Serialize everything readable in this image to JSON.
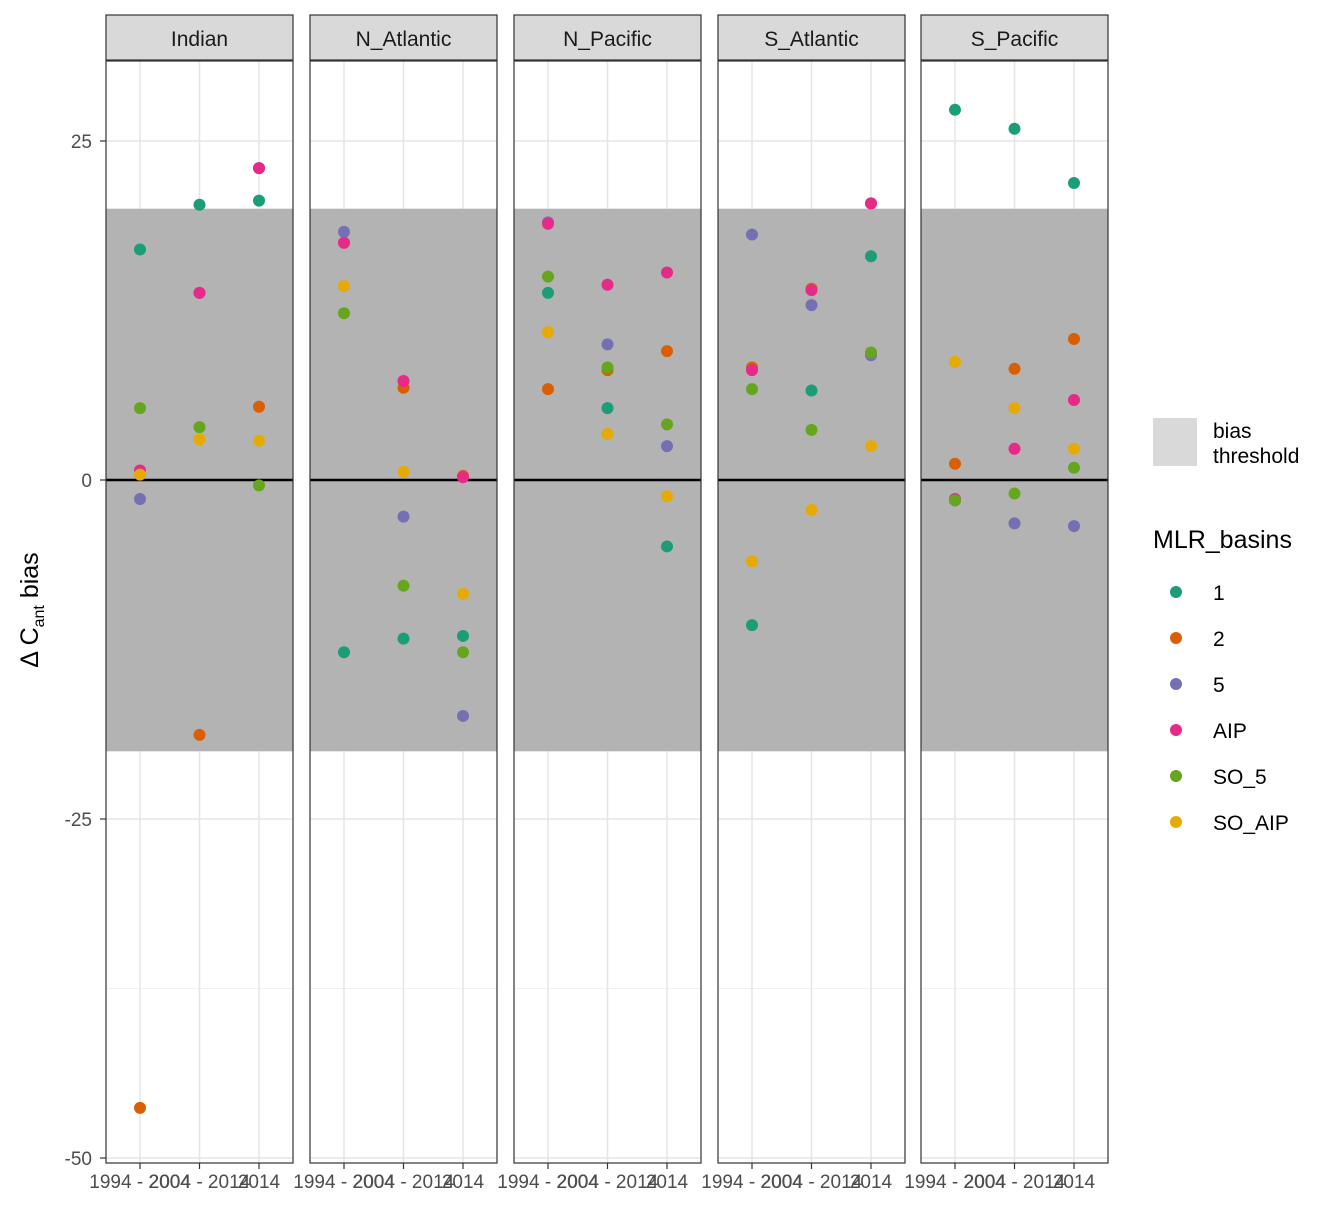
{
  "chart_data": {
    "type": "scatter",
    "facets": [
      "Indian",
      "N_Atlantic",
      "N_Pacific",
      "S_Atlantic",
      "S_Pacific"
    ],
    "x_ticks": [
      1994,
      2004,
      2014
    ],
    "x_tick_labels": [
      "1994",
      "2004",
      "2014"
    ],
    "x_period_labels": [
      "1994 - 2004",
      "2004 - 2014"
    ],
    "xlim": [
      1994,
      2014
    ],
    "ylim": [
      -50,
      30
    ],
    "y_ticks": [
      -50,
      -25,
      0,
      25
    ],
    "y_tick_labels": [
      "-50",
      "-25",
      "0",
      "25"
    ],
    "ylabel": "Δ C",
    "ylabel_sub": "ant",
    "ylabel_suffix": " bias",
    "xlabel": "",
    "bias_threshold": [
      -20,
      20
    ],
    "legend_fill_label": [
      "bias",
      "threshold"
    ],
    "legend_title": "MLR_basins",
    "series": [
      {
        "name": "1",
        "color": "#1B9E77",
        "points": {
          "Indian": [
            [
              1999,
              17
            ],
            [
              2009,
              20.3
            ],
            [
              2019,
              20.6
            ]
          ],
          "N_Atlantic": [
            [
              1999,
              -12.7
            ],
            [
              2009,
              -11.7
            ],
            [
              2019,
              -11.5
            ]
          ],
          "N_Pacific": [
            [
              1999,
              13.8
            ],
            [
              2009,
              5.3
            ],
            [
              2019,
              -4.9
            ]
          ],
          "S_Atlantic": [
            [
              1999,
              -10.7
            ],
            [
              2009,
              6.6
            ],
            [
              2019,
              16.5
            ]
          ],
          "S_Pacific": [
            [
              1999,
              27.3
            ],
            [
              2009,
              25.9
            ],
            [
              2019,
              21.9
            ]
          ]
        }
      },
      {
        "name": "2",
        "color": "#D95F02",
        "points": {
          "Indian": [
            [
              1999,
              -46.3
            ],
            [
              2009,
              -18.8
            ],
            [
              2019,
              5.4
            ]
          ],
          "N_Atlantic": [
            [
              1999,
              17.5
            ],
            [
              2009,
              6.8
            ],
            [
              2019,
              0.3
            ]
          ],
          "N_Pacific": [
            [
              1999,
              6.7
            ],
            [
              2009,
              8.1
            ],
            [
              2019,
              9.5
            ]
          ],
          "S_Atlantic": [
            [
              1999,
              8.3
            ],
            [
              2009,
              14.1
            ],
            [
              2019,
              20.4
            ]
          ],
          "S_Pacific": [
            [
              1999,
              1.2
            ],
            [
              2009,
              8.2
            ],
            [
              2019,
              10.4
            ]
          ]
        }
      },
      {
        "name": "5",
        "color": "#7570B3",
        "points": {
          "Indian": [
            [
              1999,
              -1.4
            ],
            [
              2009,
              13.8
            ],
            [
              2019,
              23
            ]
          ],
          "N_Atlantic": [
            [
              1999,
              18.3
            ],
            [
              2009,
              -2.7
            ],
            [
              2019,
              -17.4
            ]
          ],
          "N_Pacific": [
            [
              1999,
              19
            ],
            [
              2009,
              10
            ],
            [
              2019,
              2.5
            ]
          ],
          "S_Atlantic": [
            [
              1999,
              18.1
            ],
            [
              2009,
              12.9
            ],
            [
              2019,
              9.2
            ]
          ],
          "S_Pacific": [
            [
              1999,
              -1.5
            ],
            [
              2009,
              -3.2
            ],
            [
              2019,
              -3.4
            ]
          ]
        }
      },
      {
        "name": "AIP",
        "color": "#E7298A",
        "points": {
          "Indian": [
            [
              1999,
              0.7
            ],
            [
              2009,
              13.8
            ],
            [
              2019,
              23
            ]
          ],
          "N_Atlantic": [
            [
              1999,
              17.5
            ],
            [
              2009,
              7.3
            ],
            [
              2019,
              0.2
            ]
          ],
          "N_Pacific": [
            [
              1999,
              18.9
            ],
            [
              2009,
              14.4
            ],
            [
              2019,
              15.3
            ]
          ],
          "S_Atlantic": [
            [
              1999,
              8.1
            ],
            [
              2009,
              14
            ],
            [
              2019,
              20.4
            ]
          ],
          "S_Pacific": [
            [
              1999,
              -1.4
            ],
            [
              2009,
              2.3
            ],
            [
              2019,
              5.9
            ]
          ]
        }
      },
      {
        "name": "SO_5",
        "color": "#66A61E",
        "points": {
          "Indian": [
            [
              1999,
              5.3
            ],
            [
              2009,
              3.9
            ],
            [
              2019,
              -0.4
            ]
          ],
          "N_Atlantic": [
            [
              1999,
              12.3
            ],
            [
              2009,
              -7.8
            ],
            [
              2019,
              -12.7
            ]
          ],
          "N_Pacific": [
            [
              1999,
              15
            ],
            [
              2009,
              8.3
            ],
            [
              2019,
              4.1
            ]
          ],
          "S_Atlantic": [
            [
              1999,
              6.7
            ],
            [
              2009,
              3.7
            ],
            [
              2019,
              9.4
            ]
          ],
          "S_Pacific": [
            [
              1999,
              -1.5
            ],
            [
              2009,
              -1
            ],
            [
              2019,
              0.9
            ]
          ]
        }
      },
      {
        "name": "SO_AIP",
        "color": "#E6AB02",
        "points": {
          "Indian": [
            [
              1999,
              0.4
            ],
            [
              2009,
              3
            ],
            [
              2019,
              2.9
            ]
          ],
          "N_Atlantic": [
            [
              1999,
              14.3
            ],
            [
              2009,
              0.6
            ],
            [
              2019,
              -8.4
            ]
          ],
          "N_Pacific": [
            [
              1999,
              10.9
            ],
            [
              2009,
              3.4
            ],
            [
              2019,
              -1.2
            ]
          ],
          "S_Atlantic": [
            [
              1999,
              -6
            ],
            [
              2009,
              -2.2
            ],
            [
              2019,
              2.5
            ]
          ],
          "S_Pacific": [
            [
              1999,
              8.7
            ],
            [
              2009,
              5.3
            ],
            [
              2019,
              2.3
            ]
          ]
        }
      }
    ]
  }
}
